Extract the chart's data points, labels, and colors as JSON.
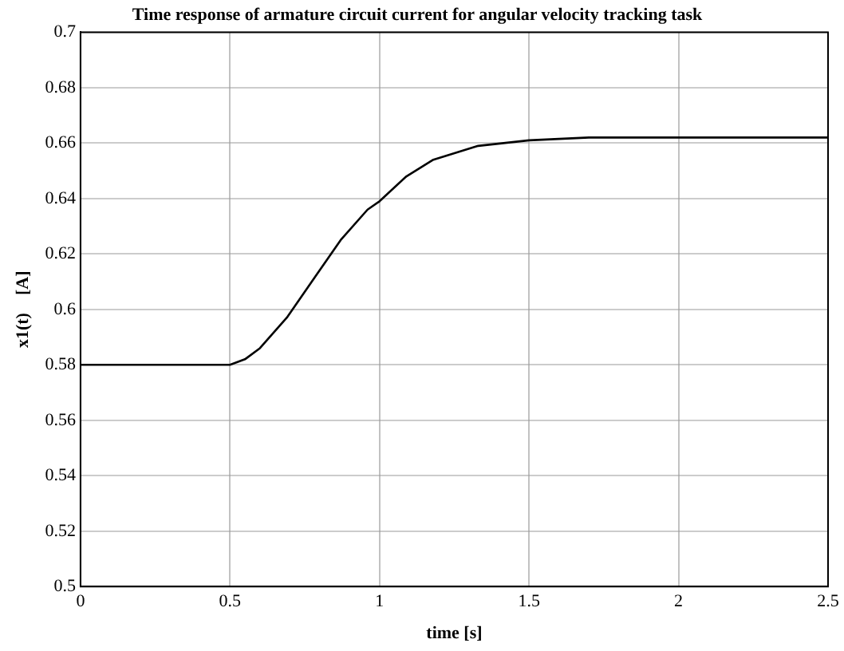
{
  "chart_data": {
    "type": "line",
    "title": "Time response of armature circuit current for angular velocity tracking task",
    "xlabel": "time [s]",
    "ylabel": "x1(t)    [A]",
    "series": [
      {
        "color": "#000000",
        "x": [
          0,
          0.1,
          0.2,
          0.3,
          0.4,
          0.5,
          0.55,
          0.6,
          0.69,
          0.78,
          0.87,
          0.96,
          1.0,
          1.09,
          1.18,
          1.33,
          1.5,
          1.7,
          2.0,
          2.5
        ],
        "values": [
          0.58,
          0.58,
          0.58,
          0.58,
          0.58,
          0.58,
          0.582,
          0.586,
          0.597,
          0.611,
          0.625,
          0.636,
          0.639,
          0.648,
          0.654,
          0.659,
          0.661,
          0.662,
          0.662,
          0.662
        ]
      }
    ],
    "xlim": [
      0,
      2.5
    ],
    "xticks": [
      0,
      0.5,
      1,
      1.5,
      2,
      2.5
    ],
    "ylim": [
      0.5,
      0.7
    ],
    "yticks": [
      0.5,
      0.52,
      0.54,
      0.56,
      0.58,
      0.6,
      0.62,
      0.64,
      0.66,
      0.68,
      0.7
    ],
    "grid": true,
    "marker": "none",
    "line_style": "solid",
    "legend": false
  }
}
